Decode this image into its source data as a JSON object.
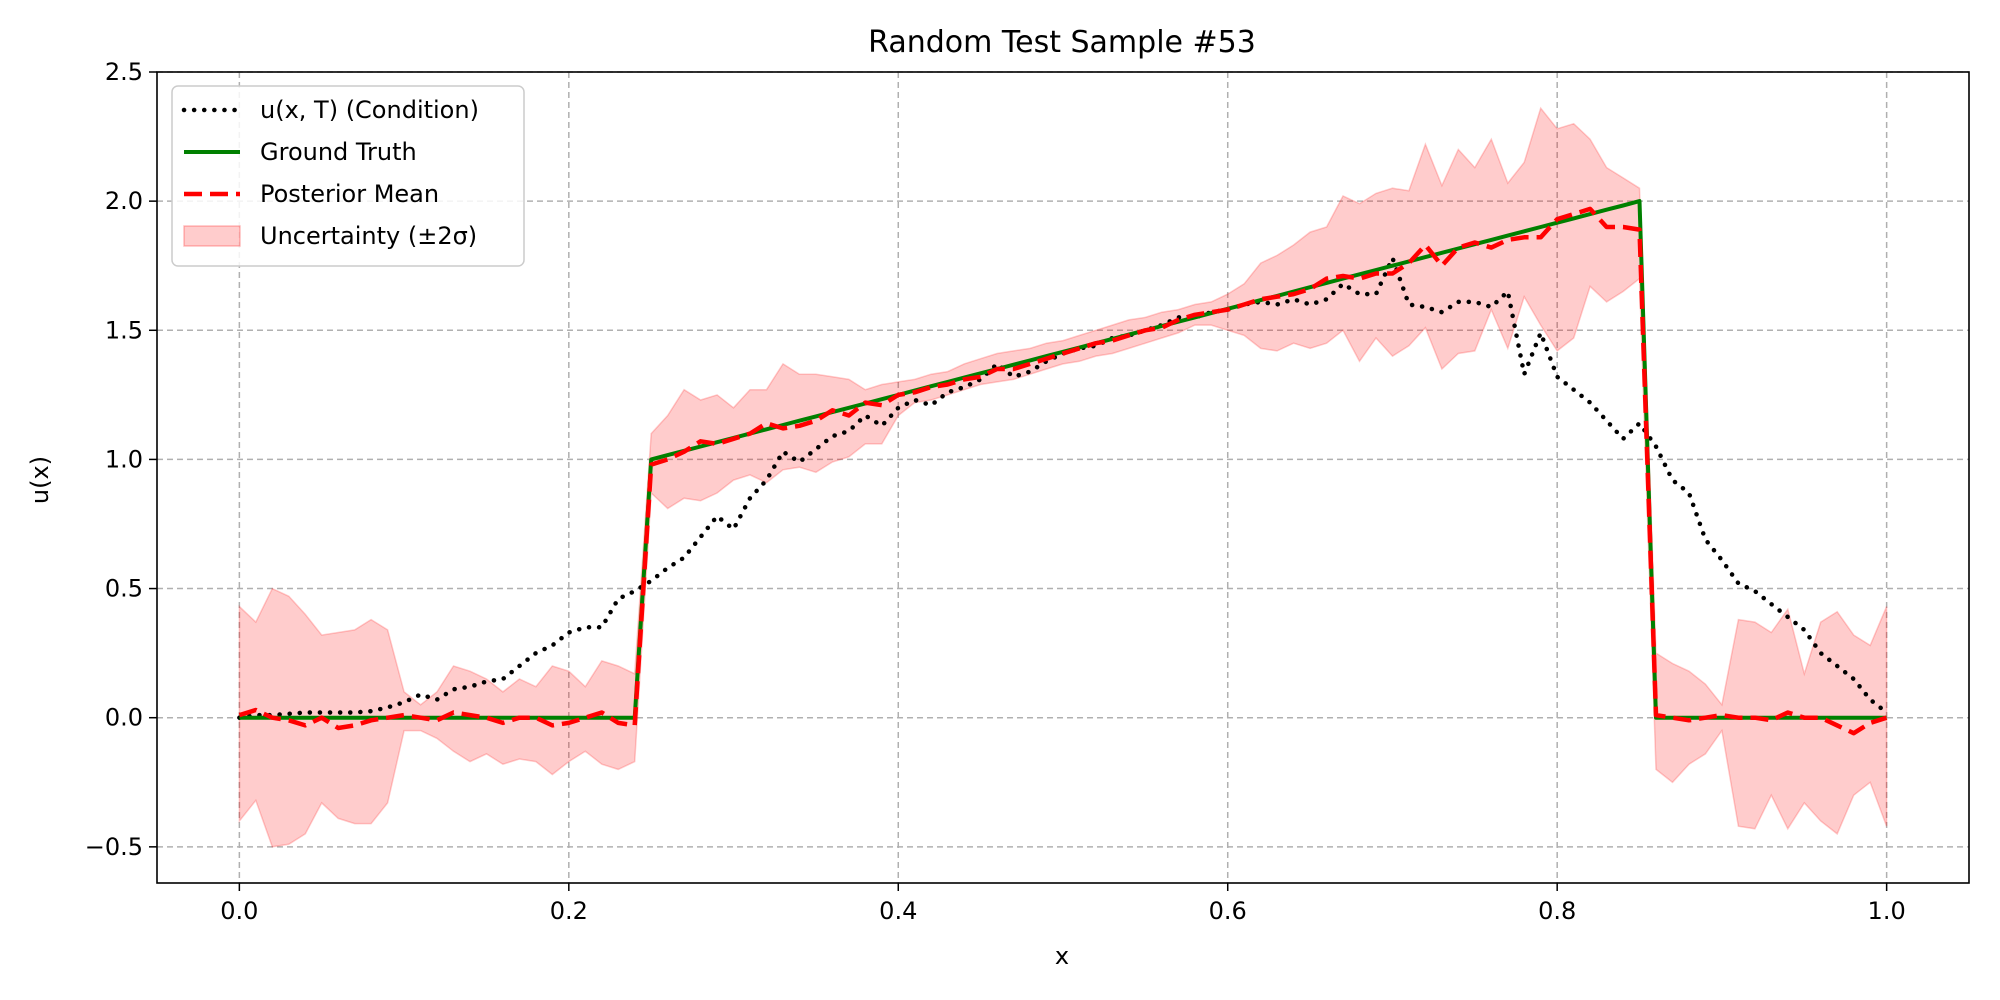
{
  "chart_data": {
    "type": "line",
    "title": "Random Test Sample #53",
    "xlabel": "x",
    "ylabel": "u(x)",
    "xlim": [
      -0.05,
      1.05
    ],
    "ylim": [
      -0.64,
      2.5
    ],
    "grid": true,
    "legend_placement": "upper-left",
    "xticks": [
      0.0,
      0.2,
      0.4,
      0.6,
      0.8,
      1.0
    ],
    "xtick_labels": [
      "0.0",
      "0.2",
      "0.4",
      "0.6",
      "0.8",
      "1.0"
    ],
    "yticks": [
      -0.5,
      0.0,
      0.5,
      1.0,
      1.5,
      2.0,
      2.5
    ],
    "ytick_labels": [
      "−0.5",
      "0.0",
      "0.5",
      "1.0",
      "1.5",
      "2.0",
      "2.5"
    ],
    "x": [
      0.0,
      0.01,
      0.02,
      0.03,
      0.04,
      0.05,
      0.06,
      0.07,
      0.08,
      0.09,
      0.1,
      0.11,
      0.12,
      0.13,
      0.14,
      0.15,
      0.16,
      0.17,
      0.18,
      0.19,
      0.2,
      0.21,
      0.22,
      0.23,
      0.24,
      0.25,
      0.26,
      0.27,
      0.28,
      0.29,
      0.3,
      0.31,
      0.32,
      0.33,
      0.34,
      0.35,
      0.36,
      0.37,
      0.38,
      0.39,
      0.4,
      0.41,
      0.42,
      0.43,
      0.44,
      0.45,
      0.46,
      0.47,
      0.48,
      0.49,
      0.5,
      0.51,
      0.52,
      0.53,
      0.54,
      0.55,
      0.56,
      0.57,
      0.58,
      0.59,
      0.6,
      0.61,
      0.62,
      0.63,
      0.64,
      0.65,
      0.66,
      0.67,
      0.68,
      0.69,
      0.7,
      0.71,
      0.72,
      0.73,
      0.74,
      0.75,
      0.76,
      0.77,
      0.78,
      0.79,
      0.8,
      0.81,
      0.82,
      0.83,
      0.84,
      0.85,
      0.86,
      0.87,
      0.88,
      0.89,
      0.9,
      0.91,
      0.92,
      0.93,
      0.94,
      0.95,
      0.96,
      0.97,
      0.98,
      0.99,
      1.0
    ],
    "series": [
      {
        "name": "u(x, T) (Condition)",
        "color": "#000000",
        "style": "dotted",
        "values": [
          0.0,
          0.01,
          0.01,
          0.015,
          0.02,
          0.02,
          0.02,
          0.02,
          0.025,
          0.04,
          0.06,
          0.09,
          0.07,
          0.11,
          0.12,
          0.14,
          0.15,
          0.2,
          0.25,
          0.28,
          0.33,
          0.35,
          0.35,
          0.46,
          0.49,
          0.53,
          0.58,
          0.62,
          0.7,
          0.78,
          0.73,
          0.85,
          0.92,
          1.03,
          0.99,
          1.04,
          1.09,
          1.11,
          1.17,
          1.13,
          1.2,
          1.23,
          1.21,
          1.26,
          1.28,
          1.31,
          1.37,
          1.32,
          1.34,
          1.38,
          1.41,
          1.43,
          1.44,
          1.47,
          1.48,
          1.5,
          1.52,
          1.55,
          1.55,
          1.57,
          1.58,
          1.6,
          1.61,
          1.6,
          1.62,
          1.6,
          1.62,
          1.68,
          1.64,
          1.64,
          1.78,
          1.6,
          1.59,
          1.57,
          1.61,
          1.61,
          1.59,
          1.65,
          1.33,
          1.49,
          1.32,
          1.27,
          1.22,
          1.15,
          1.08,
          1.14,
          1.05,
          0.92,
          0.87,
          0.69,
          0.61,
          0.52,
          0.49,
          0.44,
          0.39,
          0.34,
          0.25,
          0.2,
          0.15,
          0.07,
          0.02
        ]
      },
      {
        "name": "Ground Truth",
        "color": "#008000",
        "style": "solid",
        "values": [
          0,
          0,
          0,
          0,
          0,
          0,
          0,
          0,
          0,
          0,
          0,
          0,
          0,
          0,
          0,
          0,
          0,
          0,
          0,
          0,
          0,
          0,
          0,
          0,
          0,
          1.0,
          1.0167,
          1.0333,
          1.05,
          1.0667,
          1.0833,
          1.1,
          1.1167,
          1.1333,
          1.15,
          1.1667,
          1.1833,
          1.2,
          1.2167,
          1.2333,
          1.25,
          1.2667,
          1.2833,
          1.3,
          1.3167,
          1.3333,
          1.35,
          1.3667,
          1.3833,
          1.4,
          1.4167,
          1.4333,
          1.45,
          1.4667,
          1.4833,
          1.5,
          1.5167,
          1.5333,
          1.55,
          1.5667,
          1.5833,
          1.6,
          1.6167,
          1.6333,
          1.65,
          1.6667,
          1.6833,
          1.7,
          1.7167,
          1.7333,
          1.75,
          1.7667,
          1.7833,
          1.8,
          1.8167,
          1.8333,
          1.85,
          1.8667,
          1.8833,
          1.9,
          1.9167,
          1.9333,
          1.95,
          1.9667,
          1.9833,
          2.0,
          0,
          0,
          0,
          0,
          0,
          0,
          0,
          0,
          0,
          0,
          0,
          0,
          0,
          0,
          0
        ]
      },
      {
        "name": "Posterior Mean",
        "color": "#ff0000",
        "style": "dashed",
        "values": [
          0.01,
          0.03,
          0.0,
          -0.01,
          -0.03,
          0.0,
          -0.04,
          -0.03,
          -0.01,
          0.0,
          0.01,
          0.0,
          -0.01,
          0.02,
          0.01,
          0.0,
          -0.02,
          0.0,
          0.0,
          -0.03,
          -0.02,
          0.0,
          0.02,
          -0.02,
          -0.03,
          0.98,
          1.0,
          1.03,
          1.07,
          1.06,
          1.08,
          1.1,
          1.14,
          1.12,
          1.13,
          1.15,
          1.19,
          1.17,
          1.22,
          1.21,
          1.25,
          1.26,
          1.28,
          1.29,
          1.31,
          1.32,
          1.35,
          1.35,
          1.37,
          1.39,
          1.41,
          1.43,
          1.45,
          1.46,
          1.48,
          1.5,
          1.51,
          1.54,
          1.56,
          1.57,
          1.58,
          1.6,
          1.62,
          1.63,
          1.64,
          1.66,
          1.7,
          1.71,
          1.7,
          1.72,
          1.72,
          1.76,
          1.83,
          1.75,
          1.82,
          1.84,
          1.82,
          1.85,
          1.86,
          1.86,
          1.93,
          1.95,
          1.97,
          1.9,
          1.9,
          1.89,
          0.01,
          0.0,
          -0.01,
          0.0,
          0.01,
          0.0,
          0.0,
          -0.01,
          0.02,
          0.0,
          0.0,
          -0.03,
          -0.06,
          -0.02,
          0.0
        ]
      }
    ],
    "band": {
      "name": "Uncertainty (±2σ)",
      "color": "#ff0000",
      "opacity": 0.2,
      "upper": [
        0.43,
        0.37,
        0.5,
        0.47,
        0.4,
        0.32,
        0.33,
        0.34,
        0.38,
        0.34,
        0.1,
        0.05,
        0.1,
        0.2,
        0.18,
        0.15,
        0.1,
        0.15,
        0.12,
        0.2,
        0.18,
        0.12,
        0.22,
        0.2,
        0.17,
        1.1,
        1.17,
        1.27,
        1.23,
        1.25,
        1.2,
        1.27,
        1.27,
        1.37,
        1.33,
        1.33,
        1.32,
        1.31,
        1.27,
        1.29,
        1.3,
        1.31,
        1.33,
        1.34,
        1.37,
        1.39,
        1.41,
        1.42,
        1.43,
        1.45,
        1.46,
        1.48,
        1.5,
        1.52,
        1.54,
        1.55,
        1.57,
        1.58,
        1.6,
        1.61,
        1.64,
        1.68,
        1.76,
        1.79,
        1.83,
        1.88,
        1.9,
        2.02,
        1.99,
        2.03,
        2.05,
        2.04,
        2.22,
        2.06,
        2.2,
        2.13,
        2.24,
        2.07,
        2.15,
        2.36,
        2.28,
        2.3,
        2.24,
        2.13,
        2.09,
        2.05,
        0.25,
        0.21,
        0.18,
        0.13,
        0.05,
        0.38,
        0.37,
        0.33,
        0.42,
        0.17,
        0.37,
        0.41,
        0.32,
        0.28,
        0.43
      ],
      "lower": [
        -0.4,
        -0.32,
        -0.5,
        -0.49,
        -0.45,
        -0.33,
        -0.39,
        -0.41,
        -0.41,
        -0.33,
        -0.05,
        -0.05,
        -0.08,
        -0.13,
        -0.17,
        -0.14,
        -0.18,
        -0.16,
        -0.17,
        -0.22,
        -0.17,
        -0.13,
        -0.18,
        -0.2,
        -0.17,
        0.87,
        0.81,
        0.85,
        0.84,
        0.87,
        0.92,
        0.94,
        0.91,
        0.96,
        0.97,
        0.95,
        0.99,
        1.01,
        1.06,
        1.06,
        1.17,
        1.22,
        1.23,
        1.25,
        1.27,
        1.29,
        1.3,
        1.31,
        1.33,
        1.35,
        1.37,
        1.38,
        1.4,
        1.41,
        1.43,
        1.45,
        1.47,
        1.49,
        1.52,
        1.52,
        1.5,
        1.48,
        1.43,
        1.42,
        1.45,
        1.43,
        1.45,
        1.5,
        1.38,
        1.47,
        1.4,
        1.44,
        1.51,
        1.35,
        1.41,
        1.42,
        1.58,
        1.43,
        1.63,
        1.52,
        1.42,
        1.47,
        1.67,
        1.61,
        1.65,
        1.7,
        -0.2,
        -0.25,
        -0.18,
        -0.14,
        -0.05,
        -0.42,
        -0.43,
        -0.3,
        -0.43,
        -0.33,
        -0.4,
        -0.45,
        -0.3,
        -0.25,
        -0.42
      ]
    },
    "legend": [
      {
        "label": "u(x, T) (Condition)",
        "style": "dotted",
        "color": "#000000"
      },
      {
        "label": "Ground Truth",
        "style": "solid",
        "color": "#008000"
      },
      {
        "label": "Posterior Mean",
        "style": "dashed",
        "color": "#ff0000"
      },
      {
        "label": "Uncertainty (±2σ)",
        "style": "patch",
        "color": "#ff0000"
      }
    ]
  }
}
